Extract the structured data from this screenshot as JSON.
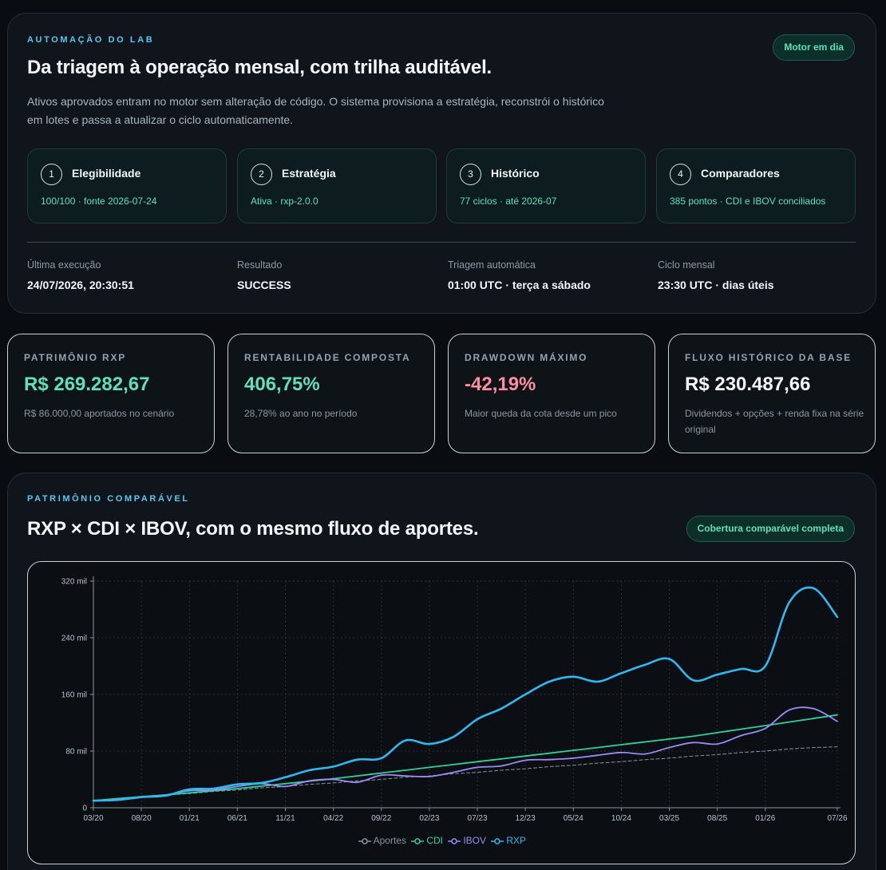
{
  "lab": {
    "eyebrow": "AUTOMAÇÃO DO LAB",
    "badge": "Motor em dia",
    "title": "Da triagem à operação mensal, com trilha auditável.",
    "description": "Ativos aprovados entram no motor sem alteração de código. O sistema provisiona a estratégia, reconstrói o histórico em lotes e passa a atualizar o ciclo automaticamente.",
    "steps": [
      {
        "num": "1",
        "title": "Elegibilidade",
        "detail": "100/100 · fonte 2026-07-24"
      },
      {
        "num": "2",
        "title": "Estratégia",
        "detail": "Ativa · rxp-2.0.0"
      },
      {
        "num": "3",
        "title": "Histórico",
        "detail": "77 ciclos · até 2026-07"
      },
      {
        "num": "4",
        "title": "Comparadores",
        "detail": "385 pontos · CDI e IBOV conciliados"
      }
    ],
    "meta": [
      {
        "label": "Última execução",
        "value": "24/07/2026, 20:30:51"
      },
      {
        "label": "Resultado",
        "value": "SUCCESS"
      },
      {
        "label": "Triagem automática",
        "value": "01:00 UTC · terça a sábado"
      },
      {
        "label": "Ciclo mensal",
        "value": "23:30 UTC · dias úteis"
      }
    ]
  },
  "kpis": [
    {
      "label": "PATRIMÔNIO RXP",
      "value": "R$ 269.282,67",
      "sub": "R$ 86.000,00 aportados no cenário",
      "color": "#5fe0b8"
    },
    {
      "label": "RENTABILIDADE COMPOSTA",
      "value": "406,75%",
      "sub": "28,78% ao ano no período",
      "color": "#5fe0b8"
    },
    {
      "label": "DRAWDOWN MÁXIMO",
      "value": "-42,19%",
      "sub": "Maior queda da cota desde um pico",
      "color": "#ff8da1"
    },
    {
      "label": "FLUXO HISTÓRICO DA BASE",
      "value": "R$ 230.487,66",
      "sub": "Dividendos + opções + renda fixa na série original",
      "color": "#f4f7fa"
    }
  ],
  "chart_section": {
    "eyebrow": "PATRIMÔNIO COMPARÁVEL",
    "title": "RXP × CDI × IBOV, com o mesmo fluxo de aportes.",
    "badge": "Cobertura comparável completa"
  },
  "chart_data": {
    "type": "line",
    "x": [
      "03/20",
      "05/20",
      "08/20",
      "10/20",
      "01/21",
      "03/21",
      "06/21",
      "08/21",
      "11/21",
      "01/22",
      "04/22",
      "06/22",
      "09/22",
      "11/22",
      "02/23",
      "04/23",
      "07/23",
      "09/23",
      "12/23",
      "02/24",
      "05/24",
      "07/24",
      "10/24",
      "12/24",
      "03/25",
      "05/25",
      "08/25",
      "10/25",
      "01/26",
      "04/26",
      "06/26",
      "07/26"
    ],
    "x_tick_labels": [
      "03/20",
      "08/20",
      "01/21",
      "06/21",
      "11/21",
      "04/22",
      "09/22",
      "02/23",
      "07/23",
      "12/23",
      "05/24",
      "10/24",
      "03/25",
      "08/25",
      "01/26",
      "07/26"
    ],
    "y_tick_labels": [
      "0",
      "80 mil",
      "160 mil",
      "240 mil",
      "320 mil"
    ],
    "ylim": [
      0,
      320000
    ],
    "grid": true,
    "legend_position": "bottom",
    "series": [
      {
        "name": "Aportes",
        "color": "#8b949c",
        "dashed": true,
        "values": [
          10000,
          13000,
          15000,
          18000,
          20000,
          23000,
          25000,
          28000,
          30000,
          33000,
          35000,
          38000,
          40000,
          43000,
          45000,
          48000,
          50000,
          53000,
          55000,
          58000,
          60000,
          63000,
          65000,
          68000,
          70000,
          73000,
          75000,
          78000,
          80000,
          83000,
          85000,
          86000
        ]
      },
      {
        "name": "CDI",
        "color": "#2fd19a",
        "values": [
          10000,
          13000,
          15500,
          18000,
          21000,
          24000,
          27000,
          30500,
          34000,
          37500,
          41000,
          45000,
          49000,
          53000,
          57000,
          61000,
          65000,
          69000,
          73000,
          77000,
          81000,
          85000,
          89000,
          93000,
          97000,
          101000,
          106000,
          111000,
          116000,
          121000,
          126000,
          131000
        ]
      },
      {
        "name": "IBOV",
        "color": "#9a8cf5",
        "values": [
          10000,
          12000,
          15000,
          18000,
          24000,
          25000,
          30000,
          34000,
          30000,
          38000,
          40000,
          36000,
          46000,
          45000,
          44000,
          50000,
          57000,
          59000,
          67000,
          68000,
          70000,
          74000,
          78000,
          76000,
          85000,
          92000,
          90000,
          102000,
          112000,
          138000,
          140000,
          122000
        ]
      },
      {
        "name": "RXP",
        "color": "#2fb9ee",
        "values": [
          10000,
          11000,
          15000,
          17000,
          26000,
          27000,
          33000,
          35000,
          43000,
          53000,
          58000,
          68000,
          70000,
          95000,
          90000,
          100000,
          125000,
          140000,
          160000,
          178000,
          185000,
          178000,
          190000,
          202000,
          210000,
          180000,
          188000,
          196000,
          200000,
          290000,
          310000,
          269283
        ]
      }
    ]
  }
}
